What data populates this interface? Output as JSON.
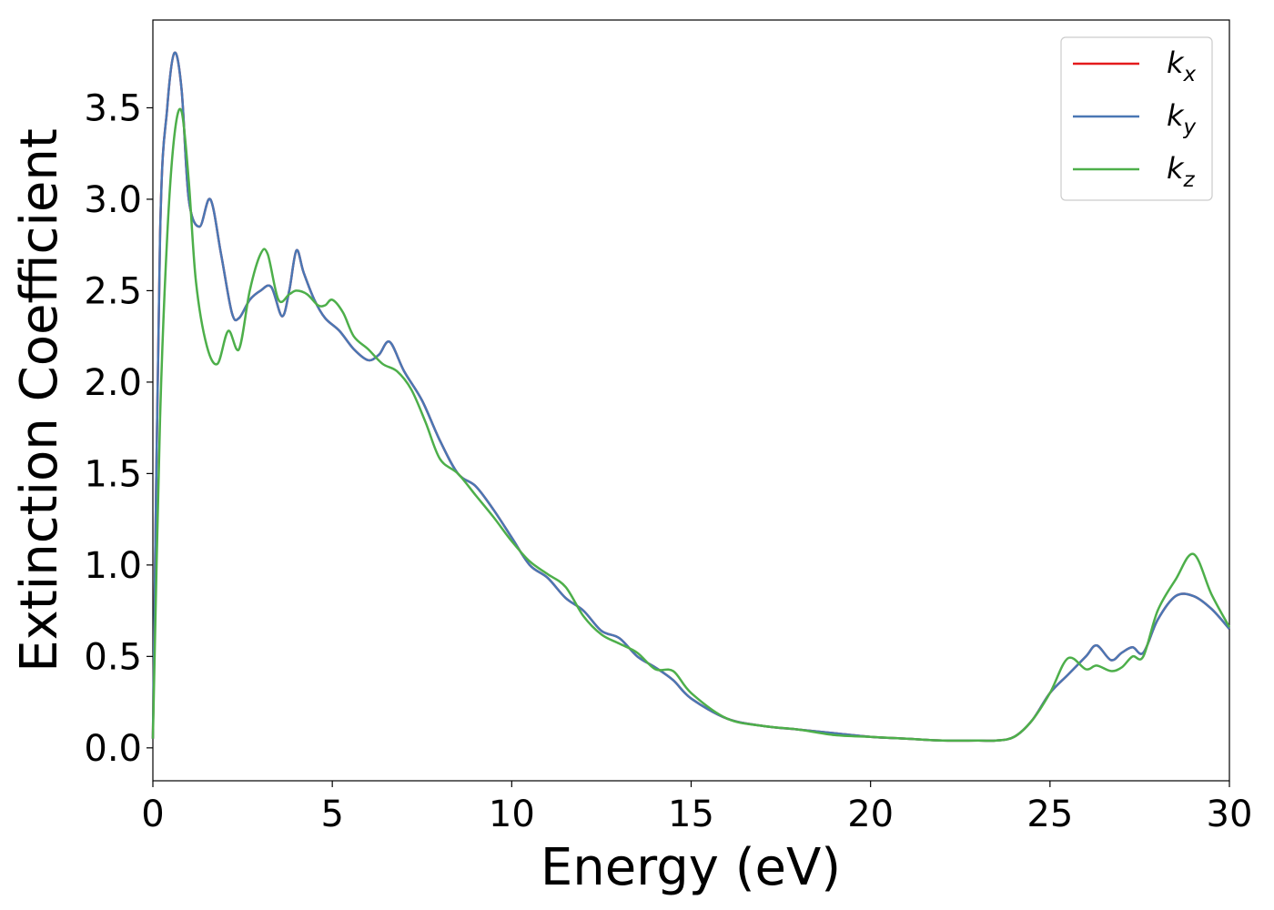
{
  "chart_data": {
    "type": "line",
    "title": "",
    "xlabel": "Energy (eV)",
    "ylabel": "Extinction Coefficient",
    "xlim": [
      0,
      30
    ],
    "ylim": [
      -0.18,
      3.98
    ],
    "xticks": [
      0,
      5,
      10,
      15,
      20,
      25,
      30
    ],
    "xtick_labels": [
      "0",
      "5",
      "10",
      "15",
      "20",
      "25",
      "30"
    ],
    "yticks": [
      0.0,
      0.5,
      1.0,
      1.5,
      2.0,
      2.5,
      3.0,
      3.5
    ],
    "ytick_labels": [
      "0.0",
      "0.5",
      "1.0",
      "1.5",
      "2.0",
      "2.5",
      "3.0",
      "3.5"
    ],
    "grid": false,
    "legend_position": "top-right",
    "series": [
      {
        "name": "k",
        "subscript": "x",
        "color": "#e41a1c",
        "x": [
          0,
          0.2,
          0.4,
          0.6,
          0.8,
          1.0,
          1.3,
          1.6,
          1.9,
          2.2,
          2.4,
          2.7,
          3.0,
          3.3,
          3.6,
          3.8,
          4.0,
          4.2,
          4.5,
          4.8,
          5.2,
          5.6,
          6.0,
          6.3,
          6.6,
          7.0,
          7.5,
          8.0,
          8.5,
          9.0,
          9.5,
          10.0,
          10.5,
          11.0,
          11.5,
          12.0,
          12.5,
          13.0,
          13.5,
          14.0,
          14.5,
          15.0,
          16.0,
          17.0,
          18.0,
          19.0,
          20.0,
          21.0,
          22.0,
          23.0,
          23.5,
          24.0,
          24.5,
          25.0,
          25.5,
          26.0,
          26.3,
          26.7,
          27.0,
          27.3,
          27.6,
          28.0,
          28.5,
          29.0,
          29.5,
          30.0
        ],
        "y": [
          0.05,
          2.8,
          3.5,
          3.8,
          3.6,
          3.0,
          2.85,
          3.0,
          2.7,
          2.38,
          2.35,
          2.45,
          2.5,
          2.52,
          2.36,
          2.5,
          2.72,
          2.6,
          2.45,
          2.35,
          2.28,
          2.18,
          2.12,
          2.15,
          2.22,
          2.06,
          1.9,
          1.68,
          1.5,
          1.43,
          1.3,
          1.15,
          1.0,
          0.93,
          0.82,
          0.75,
          0.64,
          0.6,
          0.5,
          0.44,
          0.37,
          0.27,
          0.16,
          0.12,
          0.1,
          0.08,
          0.06,
          0.05,
          0.04,
          0.04,
          0.04,
          0.06,
          0.15,
          0.3,
          0.4,
          0.5,
          0.56,
          0.48,
          0.52,
          0.55,
          0.52,
          0.7,
          0.83,
          0.83,
          0.76,
          0.65
        ]
      },
      {
        "name": "k",
        "subscript": "y",
        "color": "#4a77b4",
        "x": [
          0,
          0.2,
          0.4,
          0.6,
          0.8,
          1.0,
          1.3,
          1.6,
          1.9,
          2.2,
          2.4,
          2.7,
          3.0,
          3.3,
          3.6,
          3.8,
          4.0,
          4.2,
          4.5,
          4.8,
          5.2,
          5.6,
          6.0,
          6.3,
          6.6,
          7.0,
          7.5,
          8.0,
          8.5,
          9.0,
          9.5,
          10.0,
          10.5,
          11.0,
          11.5,
          12.0,
          12.5,
          13.0,
          13.5,
          14.0,
          14.5,
          15.0,
          16.0,
          17.0,
          18.0,
          19.0,
          20.0,
          21.0,
          22.0,
          23.0,
          23.5,
          24.0,
          24.5,
          25.0,
          25.5,
          26.0,
          26.3,
          26.7,
          27.0,
          27.3,
          27.6,
          28.0,
          28.5,
          29.0,
          29.5,
          30.0
        ],
        "y": [
          0.05,
          2.8,
          3.5,
          3.8,
          3.6,
          3.0,
          2.85,
          3.0,
          2.7,
          2.38,
          2.35,
          2.45,
          2.5,
          2.52,
          2.36,
          2.5,
          2.72,
          2.6,
          2.45,
          2.35,
          2.28,
          2.18,
          2.12,
          2.15,
          2.22,
          2.06,
          1.9,
          1.68,
          1.5,
          1.43,
          1.3,
          1.15,
          1.0,
          0.93,
          0.82,
          0.75,
          0.64,
          0.6,
          0.5,
          0.44,
          0.37,
          0.27,
          0.16,
          0.12,
          0.1,
          0.08,
          0.06,
          0.05,
          0.04,
          0.04,
          0.04,
          0.06,
          0.15,
          0.3,
          0.4,
          0.5,
          0.56,
          0.48,
          0.52,
          0.55,
          0.52,
          0.7,
          0.83,
          0.83,
          0.76,
          0.65
        ]
      },
      {
        "name": "k",
        "subscript": "z",
        "color": "#4daf4a",
        "x": [
          0,
          0.2,
          0.4,
          0.6,
          0.8,
          1.0,
          1.2,
          1.5,
          1.8,
          2.1,
          2.4,
          2.7,
          3.0,
          3.2,
          3.5,
          3.8,
          4.0,
          4.3,
          4.6,
          4.8,
          5.0,
          5.3,
          5.6,
          6.0,
          6.4,
          6.8,
          7.2,
          7.6,
          8.0,
          8.5,
          9.0,
          9.5,
          10.0,
          10.5,
          11.0,
          11.5,
          12.0,
          12.5,
          13.0,
          13.5,
          14.0,
          14.5,
          15.0,
          16.0,
          17.0,
          18.0,
          19.0,
          20.0,
          21.0,
          22.0,
          23.0,
          23.5,
          24.0,
          24.5,
          25.0,
          25.5,
          26.0,
          26.3,
          26.7,
          27.0,
          27.3,
          27.6,
          28.0,
          28.5,
          29.0,
          29.5,
          30.0
        ],
        "y": [
          0.05,
          1.8,
          2.8,
          3.35,
          3.48,
          3.1,
          2.55,
          2.2,
          2.1,
          2.28,
          2.18,
          2.5,
          2.7,
          2.7,
          2.45,
          2.48,
          2.5,
          2.48,
          2.42,
          2.42,
          2.45,
          2.38,
          2.25,
          2.18,
          2.1,
          2.06,
          1.96,
          1.78,
          1.58,
          1.5,
          1.38,
          1.26,
          1.13,
          1.02,
          0.95,
          0.88,
          0.72,
          0.62,
          0.57,
          0.52,
          0.43,
          0.42,
          0.3,
          0.16,
          0.12,
          0.1,
          0.07,
          0.06,
          0.05,
          0.04,
          0.04,
          0.04,
          0.06,
          0.15,
          0.3,
          0.49,
          0.43,
          0.45,
          0.42,
          0.44,
          0.5,
          0.5,
          0.75,
          0.92,
          1.06,
          0.84,
          0.66
        ]
      }
    ]
  }
}
